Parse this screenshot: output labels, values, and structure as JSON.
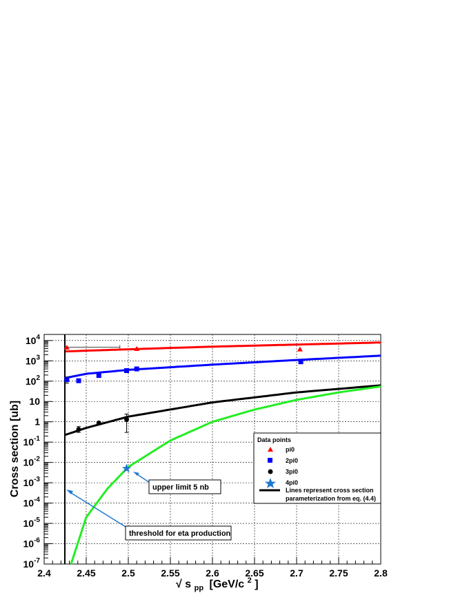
{
  "chart_data": {
    "type": "scatter",
    "xlabel_parts": {
      "sqrt": "√",
      "s": "s",
      "sub": "pp",
      "unit_pre": "[GeV/c",
      "unit_sup": "2",
      "unit_post": "]"
    },
    "ylabel": "Cross section [ub]",
    "xlim": [
      2.4,
      2.8
    ],
    "ylim": [
      1e-07,
      20000
    ],
    "yscale": "log",
    "grid": true,
    "x_ticks": [
      "2.4",
      "2.45",
      "2.5",
      "2.55",
      "2.6",
      "2.65",
      "2.7",
      "2.75",
      "2.8"
    ],
    "y_ticks": [
      {
        "base": "10",
        "exp": "4"
      },
      {
        "base": "10",
        "exp": "3"
      },
      {
        "base": "10",
        "exp": "2"
      },
      {
        "base": "10",
        "exp": ""
      },
      {
        "base": "1",
        "exp": ""
      },
      {
        "base": "10",
        "exp": "-1"
      },
      {
        "base": "10",
        "exp": "-2"
      },
      {
        "base": "10",
        "exp": "-3"
      },
      {
        "base": "10",
        "exp": "-4"
      },
      {
        "base": "10",
        "exp": "-5"
      },
      {
        "base": "10",
        "exp": "-6"
      },
      {
        "base": "10",
        "exp": "-7"
      }
    ],
    "threshold_x": 2.4246,
    "series": [
      {
        "name": "pi0",
        "marker": "triangle",
        "color": "#ff0000",
        "points": [
          [
            2.427,
            4500
          ],
          [
            2.51,
            3900
          ],
          [
            2.704,
            3700
          ]
        ]
      },
      {
        "name": "2pi0",
        "marker": "square",
        "color": "#0000ff",
        "points": [
          [
            2.427,
            120
          ],
          [
            2.441,
            105
          ],
          [
            2.465,
            190
          ],
          [
            2.498,
            330
          ],
          [
            2.51,
            400
          ],
          [
            2.705,
            900
          ]
        ]
      },
      {
        "name": "3pi0",
        "marker": "circle",
        "color": "#000000",
        "points": [
          [
            2.441,
            0.42
          ],
          [
            2.465,
            0.88
          ],
          [
            2.498,
            1.3
          ]
        ]
      },
      {
        "name": "4pi0",
        "marker": "star",
        "color": "#1f77d0",
        "points": [
          [
            2.498,
            0.005
          ]
        ]
      }
    ],
    "curves": [
      {
        "color": "#ff0000",
        "points": [
          [
            2.424,
            2900
          ],
          [
            2.5,
            3700
          ],
          [
            2.6,
            5000
          ],
          [
            2.7,
            6300
          ],
          [
            2.8,
            8000
          ]
        ]
      },
      {
        "color": "#0000ff",
        "points": [
          [
            2.424,
            140
          ],
          [
            2.45,
            230
          ],
          [
            2.5,
            360
          ],
          [
            2.6,
            650
          ],
          [
            2.7,
            1100
          ],
          [
            2.8,
            1800
          ]
        ]
      },
      {
        "color": "#000000",
        "points": [
          [
            2.424,
            0.22
          ],
          [
            2.45,
            0.5
          ],
          [
            2.5,
            1.8
          ],
          [
            2.6,
            9
          ],
          [
            2.7,
            28
          ],
          [
            2.8,
            62
          ]
        ]
      },
      {
        "color": "#22ee22",
        "points": [
          [
            2.432,
            1e-07
          ],
          [
            2.45,
            2e-05
          ],
          [
            2.475,
            0.0005
          ],
          [
            2.5,
            0.006
          ],
          [
            2.55,
            0.12
          ],
          [
            2.6,
            1.0
          ],
          [
            2.65,
            4
          ],
          [
            2.7,
            12
          ],
          [
            2.75,
            28
          ],
          [
            2.8,
            55
          ]
        ]
      }
    ],
    "error_bars": [
      {
        "x": 2.498,
        "y": 1.3,
        "ylo": 0.3,
        "yhi": 2.4
      },
      {
        "x": 2.441,
        "y": 0.42,
        "ylo": 0.3,
        "yhi": 0.58
      },
      {
        "x": 2.427,
        "y": 120,
        "ylo": 80,
        "yhi": 160
      }
    ],
    "hbar": {
      "x1": 2.424,
      "x2": 2.49,
      "y": 4700
    },
    "legend": {
      "title": "Data points",
      "entries": [
        "pi0",
        "2pi0",
        "3pi0",
        "4pi0"
      ],
      "line_label_1": "Lines represent cross section",
      "line_label_2": "parameterization from eq. (4.4)"
    },
    "annotations": [
      {
        "text": "upper limit 5 nb",
        "target_x": 2.498,
        "target_y": 0.005
      },
      {
        "text": "threshold for eta production",
        "target_x": 2.427,
        "target_y": 0.0006
      }
    ]
  }
}
